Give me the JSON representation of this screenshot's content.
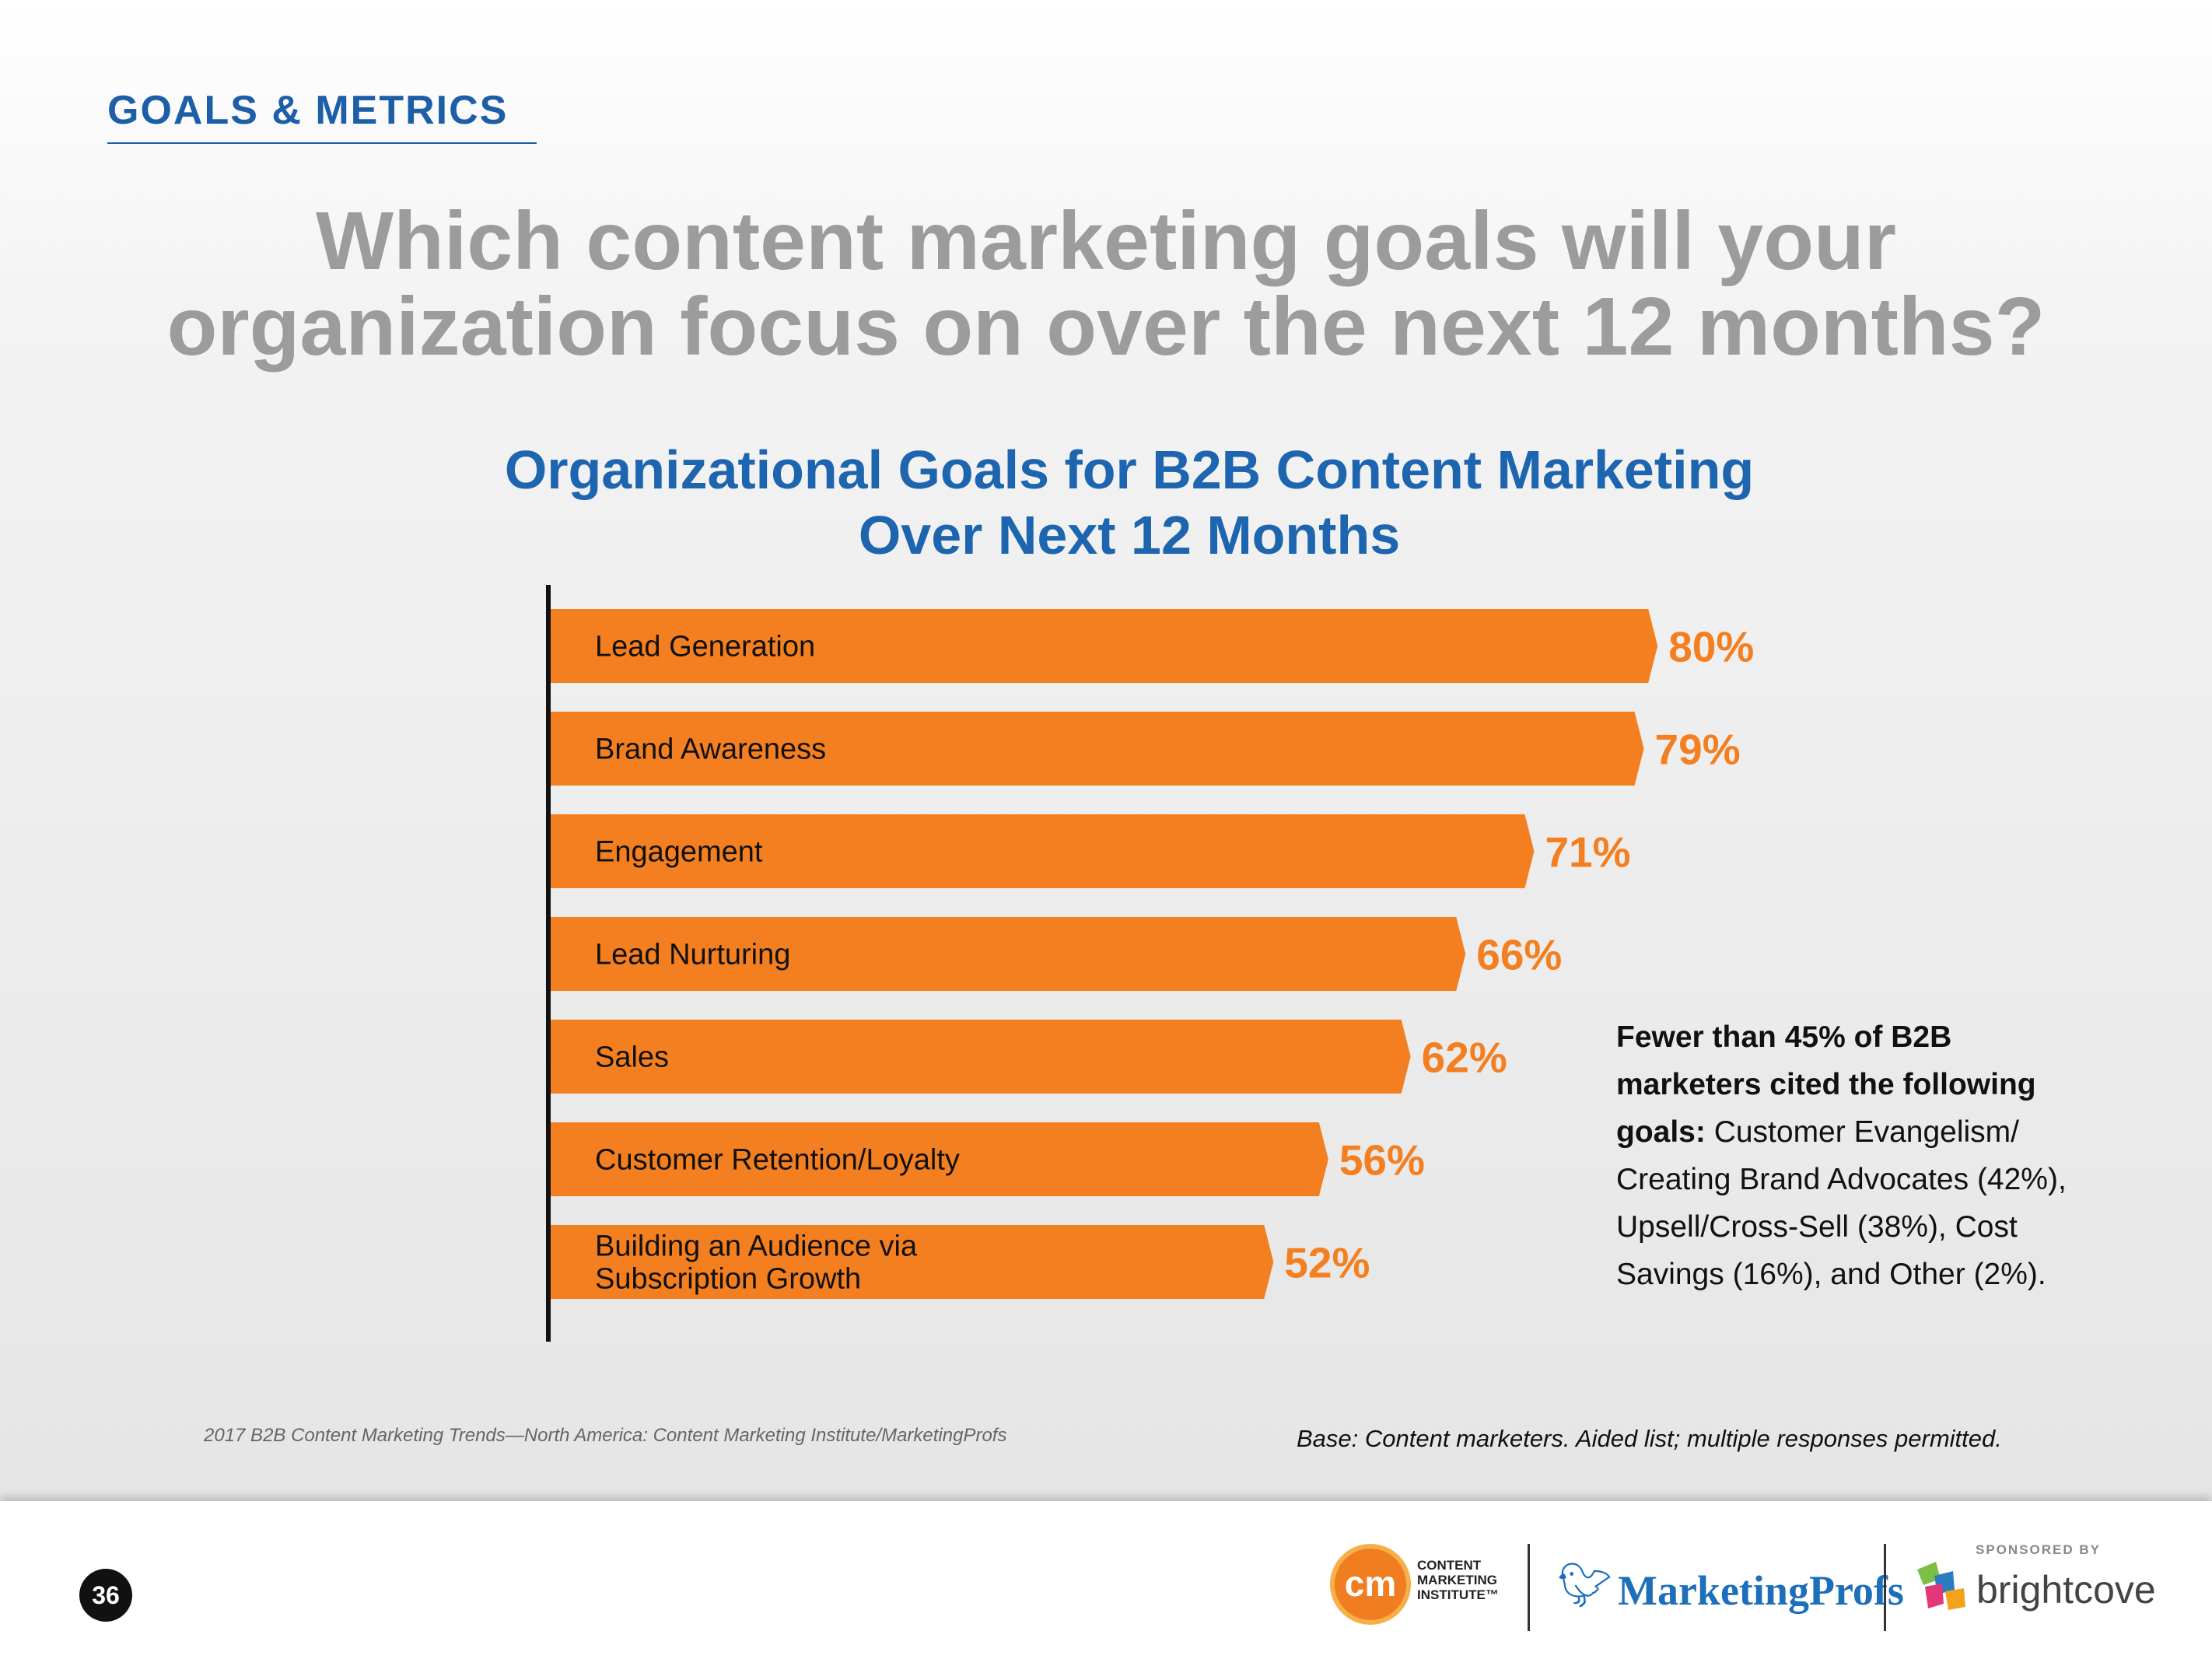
{
  "header": {
    "section_tag": "GOALS & METRICS",
    "question_lines": [
      "Which content marketing goals will your",
      "organization focus on over the next 12 months?"
    ]
  },
  "chart_data": {
    "type": "bar",
    "orientation": "horizontal",
    "title_lines": [
      "Organizational Goals for B2B Content Marketing",
      "Over Next 12 Months"
    ],
    "categories": [
      "Lead Generation",
      "Brand Awareness",
      "Engagement",
      "Lead Nurturing",
      "Sales",
      "Customer Retention/Loyalty",
      "Building an Audience via Subscription Growth"
    ],
    "values": [
      80,
      79,
      71,
      66,
      62,
      56,
      52
    ],
    "value_labels": [
      "80%",
      "79%",
      "71%",
      "66%",
      "62%",
      "56%",
      "52%"
    ],
    "xlim": [
      0,
      100
    ],
    "grid": false,
    "bar_color": "#f47f20",
    "value_label_color": "#f47f20",
    "axis_color": "#111111"
  },
  "callout": {
    "bold_text": "Fewer than 45% of B2B marketers cited the following goals:",
    "text": " Customer Evangelism/ Creating Brand Advocates (42%), Upsell/Cross-Sell (38%), Cost Savings (16%), and Other (2%)."
  },
  "notes": {
    "source": "2017 B2B Content Marketing Trends—North America: Content Marketing Institute/MarketingProfs",
    "base": "Base: Content marketers. Aided list; multiple responses permitted."
  },
  "footer": {
    "page_number": "36",
    "cmi_mark": "cm",
    "cmi_name": "CONTENT MARKETING INSTITUTE™",
    "marketingprofs": "MarketingProfs",
    "sponsor_label": "SPONSORED BY",
    "brightcove": "brightcove"
  },
  "colors": {
    "heading_blue": "#1e65b0",
    "question_gray": "#9c9c9c",
    "orange": "#f47f20"
  }
}
